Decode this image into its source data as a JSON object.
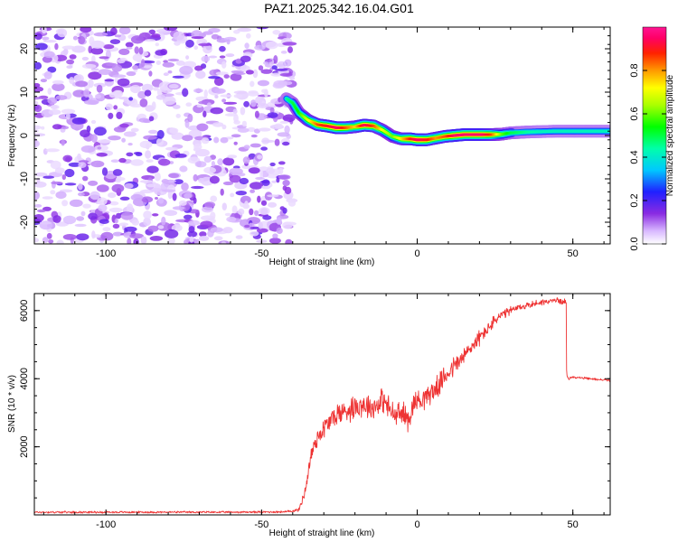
{
  "title": "PAZ1.2025.342.16.04.G01",
  "colors": {
    "snr_line": "#ee3333",
    "frame": "#000000"
  },
  "chart_data": [
    {
      "type": "heatmap",
      "name": "spectrogram",
      "xlabel": "Height of straight line (km)",
      "ylabel": "Frequency (Hz)",
      "xlim": [
        -123,
        62
      ],
      "ylim": [
        -25,
        25
      ],
      "x_ticks": [
        -100,
        -50,
        0,
        50
      ],
      "x_tick_labels": [
        "-100",
        "-50",
        "0",
        "50"
      ],
      "y_ticks": [
        -20,
        -10,
        0,
        10,
        20
      ],
      "y_tick_labels": [
        "-20",
        "-10",
        "0",
        "10",
        "20"
      ],
      "noise_region": {
        "x_from": -123,
        "x_to": -40,
        "note": "scattered low-amplitude noise"
      },
      "ridge": {
        "x": [
          -42,
          -40,
          -38,
          -35,
          -32,
          -29,
          -26,
          -23,
          -20,
          -17,
          -14,
          -11,
          -8,
          -5,
          -2,
          0,
          3,
          6,
          9,
          12,
          15,
          18,
          21,
          24,
          27,
          30,
          35,
          40,
          45,
          50,
          55,
          62
        ],
        "y": [
          8.5,
          7.5,
          5.2,
          3.5,
          2.5,
          2.2,
          1.8,
          1.8,
          2.0,
          2.4,
          2.2,
          1.2,
          -0.2,
          -0.8,
          -0.8,
          -1.0,
          -1.0,
          -0.6,
          -0.2,
          0.0,
          0.2,
          0.2,
          0.2,
          0.2,
          0.3,
          0.6,
          0.8,
          0.9,
          1.0,
          1.0,
          1.0,
          1.0
        ],
        "amplitude": [
          0.45,
          0.5,
          0.55,
          0.7,
          0.85,
          0.9,
          0.95,
          0.85,
          0.75,
          0.95,
          0.85,
          0.7,
          0.6,
          0.75,
          0.9,
          0.95,
          0.9,
          0.8,
          0.85,
          0.95,
          0.95,
          0.95,
          0.95,
          0.85,
          0.6,
          0.5,
          0.45,
          0.42,
          0.42,
          0.42,
          0.42,
          0.42
        ]
      },
      "colorbar": {
        "label": "Normalized spectral amplitude",
        "range": [
          0,
          1
        ],
        "ticks": [
          0.0,
          0.2,
          0.4,
          0.6,
          0.8
        ],
        "tick_labels": [
          "0.0",
          "0.2",
          "0.4",
          "0.6",
          "0.8"
        ]
      }
    },
    {
      "type": "line",
      "name": "snr",
      "xlabel": "Height of straight line (km)",
      "ylabel": "SNR (10 * v/v)",
      "xlim": [
        -123,
        62
      ],
      "ylim": [
        0,
        6500
      ],
      "x_ticks": [
        -100,
        -50,
        0,
        50
      ],
      "x_tick_labels": [
        "-100",
        "-50",
        "0",
        "50"
      ],
      "y_ticks": [
        2000,
        4000,
        6000
      ],
      "y_tick_labels": [
        "2000",
        "4000",
        "6000"
      ],
      "series": [
        {
          "name": "SNR",
          "x": [
            -123,
            -60,
            -42,
            -38,
            -36,
            -34,
            -32,
            -29,
            -26,
            -23,
            -20,
            -17,
            -14,
            -11,
            -9,
            -7,
            -5,
            -3,
            -1,
            0,
            3,
            6,
            10,
            15,
            18,
            22,
            26,
            30,
            35,
            40,
            45,
            47.9,
            48,
            48.5,
            50,
            55,
            62
          ],
          "y": [
            80,
            80,
            90,
            150,
            700,
            1800,
            2300,
            2650,
            2950,
            3050,
            3200,
            3250,
            3150,
            3400,
            3100,
            2900,
            3000,
            2800,
            3300,
            3350,
            3500,
            3700,
            4200,
            4650,
            5000,
            5400,
            5800,
            6000,
            6150,
            6250,
            6300,
            6250,
            4100,
            4000,
            4050,
            4000,
            3950
          ],
          "jitter": [
            35,
            35,
            40,
            60,
            200,
            350,
            350,
            400,
            420,
            430,
            450,
            450,
            450,
            450,
            450,
            450,
            450,
            450,
            400,
            420,
            400,
            380,
            380,
            350,
            300,
            250,
            200,
            150,
            120,
            110,
            100,
            100,
            50,
            40,
            40,
            40,
            40
          ]
        }
      ]
    }
  ]
}
